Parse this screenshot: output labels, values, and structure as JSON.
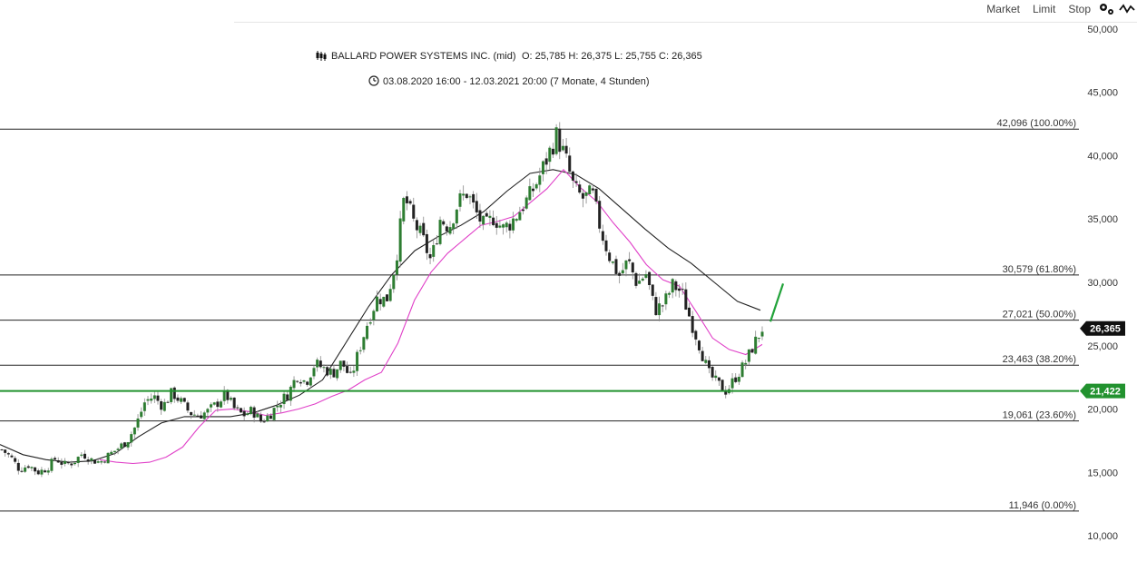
{
  "toolbar": {
    "market_label": "Market",
    "limit_label": "Limit",
    "stop_label": "Stop",
    "icons": [
      "settings-icon",
      "chart-type-icon"
    ]
  },
  "header": {
    "instrument": "BALLARD POWER SYSTEMS INC. (mid)",
    "ohlc": "O: 25,785  H: 26,375  L: 25,755  C: 26,365",
    "period": "03.08.2020 16:00 - 12.03.2021 20:00   (7 Monate, 4 Stunden)",
    "icon_instrument": "candles-icon",
    "icon_period": "clock-icon"
  },
  "colors": {
    "up": "#2e7d32",
    "down": "#222222",
    "ma_fast": "#e040c8",
    "ma_slow": "#222222",
    "support": "#22922f",
    "fib": "#222222",
    "current_tag": "#111111",
    "support_tag": "#22922f",
    "arrow": "#22a33a"
  },
  "chart_data": {
    "type": "candlestick",
    "title": "BALLARD POWER SYSTEMS INC. (mid)",
    "ylim": [
      9000,
      51000
    ],
    "y_ticks": [
      "50,000",
      "45,000",
      "40,000",
      "35,000",
      "30,000",
      "25,000",
      "20,000",
      "15,000",
      "10,000"
    ],
    "y_tick_values": [
      50000,
      45000,
      40000,
      35000,
      30000,
      25000,
      20000,
      15000,
      10000
    ],
    "last": {
      "label": "26,365",
      "value": 26365
    },
    "support": {
      "label": "21,422",
      "value": 21422
    },
    "fibonacci": [
      {
        "label": "42,096 (100.00%)",
        "value": 42096
      },
      {
        "label": "30,579 (61.80%)",
        "value": 30579
      },
      {
        "label": "27,021 (50.00%)",
        "value": 27021
      },
      {
        "label": "23,463 (38.20%)",
        "value": 23463
      },
      {
        "label": "19,061 (23.60%)",
        "value": 19061
      },
      {
        "label": "11,946 (0.00%)",
        "value": 11946
      }
    ],
    "price_path": [
      16800,
      16200,
      15200,
      15600,
      15000,
      15300,
      16100,
      15600,
      15800,
      16500,
      16000,
      15800,
      16400,
      16900,
      17500,
      18700,
      20600,
      21000,
      20200,
      21300,
      20600,
      19700,
      19500,
      19800,
      20400,
      21200,
      20000,
      19500,
      19900,
      19000,
      19600,
      20500,
      21200,
      22700,
      22100,
      23600,
      23200,
      22800,
      23700,
      22400,
      24800,
      27100,
      28800,
      28600,
      31500,
      36800,
      34800,
      33500,
      31600,
      35000,
      34400,
      36300,
      37100,
      35500,
      34300,
      35200,
      34200,
      34800,
      35800,
      36800,
      38200,
      39900,
      41600,
      39800,
      37300,
      36600,
      37000,
      34000,
      31900,
      30500,
      31700,
      29900,
      30700,
      27800,
      28300,
      29800,
      29200,
      27000,
      25000,
      22800,
      22000,
      21400,
      22500,
      23500,
      25000,
      26365
    ],
    "ma_fast": [
      16000,
      15800,
      15700,
      15800,
      16200,
      17000,
      18600,
      19900,
      20000,
      19800,
      19500,
      19700,
      20000,
      20400,
      21000,
      21500,
      22300,
      22900,
      25200,
      28600,
      30800,
      32300,
      33400,
      34500,
      34800,
      35200,
      36300,
      37400,
      38900,
      37500,
      36400,
      34700,
      33200,
      31400,
      30200,
      29700,
      27700,
      25600,
      24700,
      24300,
      25100
    ],
    "ma_slow": [
      17200,
      16400,
      16000,
      15800,
      15900,
      16500,
      17800,
      18900,
      19400,
      19400,
      19400,
      19700,
      20300,
      21100,
      22300,
      25200,
      28100,
      30600,
      32500,
      33600,
      34500,
      35600,
      37200,
      38600,
      38900,
      38500,
      37400,
      35800,
      34200,
      32700,
      31500,
      30000,
      28500,
      27800
    ]
  }
}
